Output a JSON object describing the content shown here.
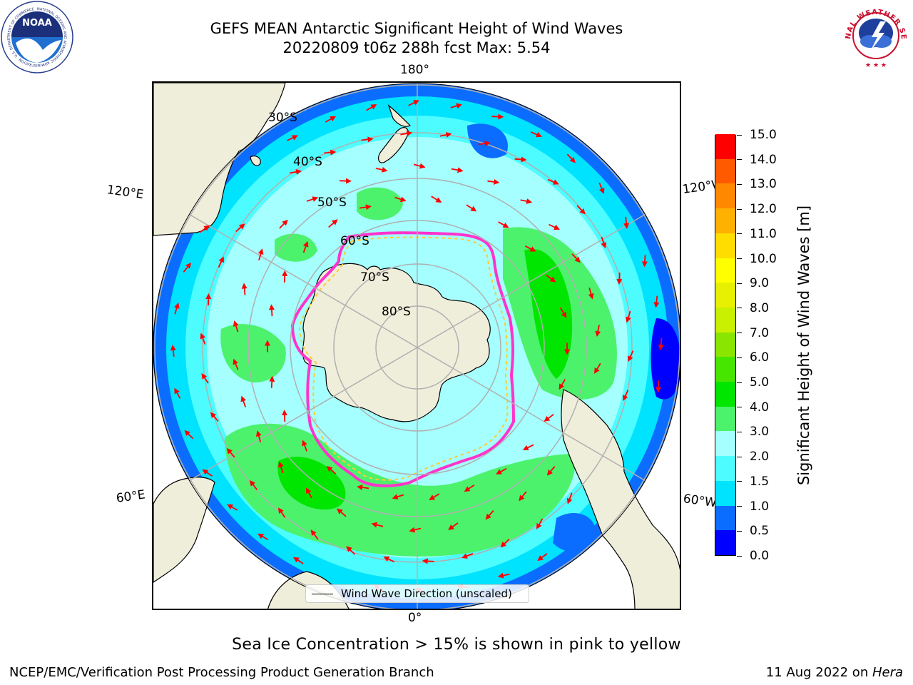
{
  "title": {
    "line1": "GEFS MEAN Antarctic Significant Height of Wind Waves",
    "line2": "20220809 t06z 288h fcst   Max: 5.54"
  },
  "map": {
    "projection": "south-polar-stereographic",
    "longitude_labels": {
      "top": "180°",
      "bottom": "0°",
      "upper_left": "120°E",
      "upper_right": "120°W",
      "lower_left": "60°E",
      "lower_right": "60°W"
    },
    "latitude_labels": [
      "30°S",
      "40°S",
      "50°S",
      "60°S",
      "70°S",
      "80°S"
    ],
    "colors": {
      "land": "#efeedb",
      "ice_edge_outer": "#ff33cc",
      "ice_edge_inner": "#ffcc33",
      "arrows": "#ff0000",
      "graticule": "#b0b0b0"
    }
  },
  "legend": {
    "label": "Wind Wave Direction (unscaled)"
  },
  "colorbar": {
    "label": "Significant Height of Wind Waves [m]",
    "levels": [
      0.0,
      0.5,
      1.0,
      1.5,
      2.0,
      3.0,
      4.0,
      5.0,
      6.0,
      7.0,
      8.0,
      9.0,
      10.0,
      11.0,
      12.0,
      13.0,
      14.0,
      15.0
    ],
    "tick_labels": [
      "0.0",
      "0.5",
      "1.0",
      "1.5",
      "2.0",
      "3.0",
      "4.0",
      "5.0",
      "6.0",
      "7.0",
      "8.0",
      "9.0",
      "10.0",
      "11.0",
      "12.0",
      "13.0",
      "14.0",
      "15.0"
    ],
    "colors": [
      "#0000ff",
      "#0b6dff",
      "#00e3ff",
      "#4dfcff",
      "#a5ffff",
      "#4cf26c",
      "#00e600",
      "#47e600",
      "#8ae600",
      "#c8f000",
      "#e6f000",
      "#ffff00",
      "#ffdd00",
      "#ffb000",
      "#ff8800",
      "#ff5a00",
      "#ff0000"
    ]
  },
  "ice_note": "Sea Ice Concentration > 15% is shown in pink to yellow",
  "footer": {
    "left": "NCEP/EMC/Verification Post Processing Product Generation Branch",
    "date": "11 Aug 2022 on ",
    "machine": "Hera"
  },
  "logos": {
    "left": "NOAA",
    "left_ring": "NATIONAL OCEANIC AND ATMOSPHERIC ADMINISTRATION · U.S. DEPARTMENT OF COMMERCE",
    "right_ring": "NATIONAL WEATHER SERVICE"
  }
}
